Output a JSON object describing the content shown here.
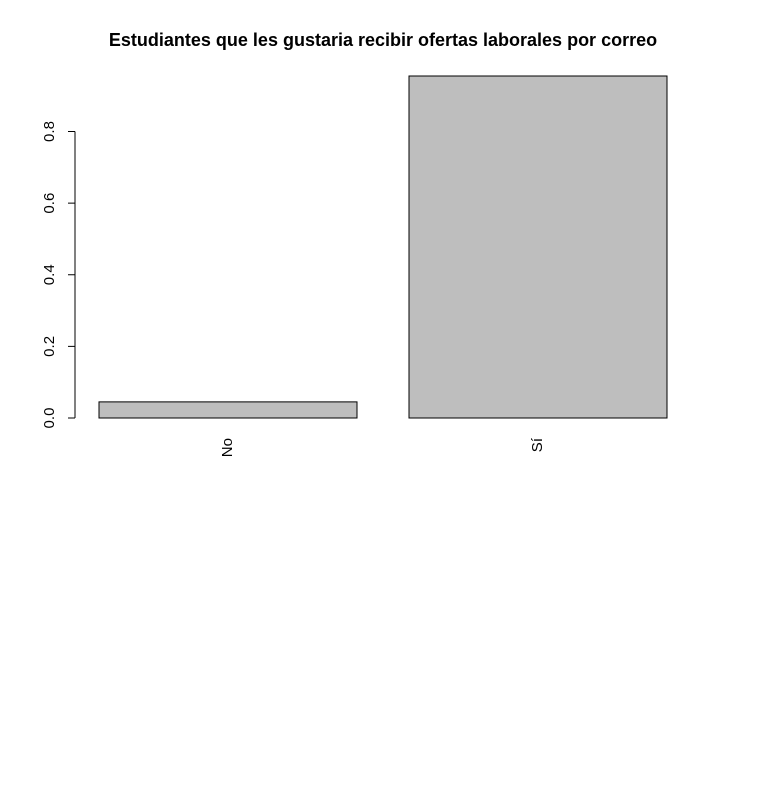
{
  "chart_data": {
    "type": "bar",
    "title": "Estudiantes que les gustaria recibir ofertas laborales por correo",
    "xlabel": "",
    "ylabel": "",
    "categories": [
      "No",
      "Sí"
    ],
    "values": [
      0.045,
      0.955
    ],
    "ylim": [
      0,
      0.955
    ],
    "y_ticks": [
      0.0,
      0.2,
      0.4,
      0.6,
      0.8
    ],
    "y_tick_labels": [
      "0.0",
      "0.2",
      "0.4",
      "0.6",
      "0.8"
    ],
    "bar_color": "#bebebe",
    "border_color": "#000000",
    "grid": false,
    "legend": "none"
  }
}
